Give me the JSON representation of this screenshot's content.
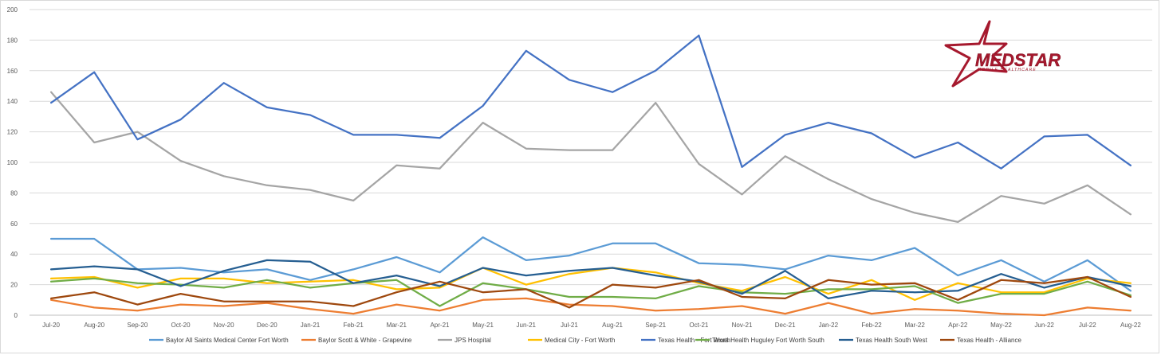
{
  "chart_data": {
    "type": "line",
    "title": "",
    "xlabel": "",
    "ylabel": "",
    "ylim": [
      0,
      200
    ],
    "yticks": [
      0,
      20,
      40,
      60,
      80,
      100,
      120,
      140,
      160,
      180,
      200
    ],
    "grid": "horizontal",
    "legend_position": "bottom",
    "categories": [
      "Jul-20",
      "Aug-20",
      "Sep-20",
      "Oct-20",
      "Nov-20",
      "Dec-20",
      "Jan-21",
      "Feb-21",
      "Mar-21",
      "Apr-21",
      "May-21",
      "Jun-21",
      "Jul-21",
      "Aug-21",
      "Sep-21",
      "Oct-21",
      "Nov-21",
      "Dec-21",
      "Jan-22",
      "Feb-22",
      "Mar-22",
      "Apr-22",
      "May-22",
      "Jun-22",
      "Jul-22",
      "Aug-22"
    ],
    "series": [
      {
        "name": "Baylor All Saints Medical Center Fort Worth",
        "color": "#5b9bd5",
        "values": [
          50,
          50,
          30,
          31,
          28,
          30,
          23,
          30,
          38,
          28,
          51,
          36,
          39,
          47,
          47,
          34,
          33,
          30,
          39,
          36,
          44,
          26,
          36,
          22,
          36,
          16
        ]
      },
      {
        "name": "Baylor Scott & White - Grapevine",
        "color": "#ed7d31",
        "values": [
          10,
          5,
          3,
          7,
          6,
          8,
          4,
          1,
          7,
          3,
          10,
          11,
          7,
          6,
          3,
          4,
          6,
          1,
          8,
          1,
          4,
          3,
          1,
          0,
          5,
          3
        ]
      },
      {
        "name": "JPS Hospital",
        "color": "#a5a5a5",
        "values": [
          146,
          113,
          120,
          101,
          91,
          85,
          82,
          75,
          98,
          96,
          126,
          109,
          108,
          108,
          139,
          99,
          79,
          104,
          89,
          76,
          67,
          61,
          78,
          73,
          85,
          66
        ]
      },
      {
        "name": "Medical City - Fort Worth",
        "color": "#ffc000",
        "values": [
          24,
          25,
          18,
          24,
          24,
          21,
          22,
          23,
          17,
          18,
          31,
          20,
          27,
          31,
          28,
          21,
          16,
          25,
          14,
          23,
          10,
          21,
          15,
          15,
          24,
          21
        ]
      },
      {
        "name": "Texas Health - Fort Worth",
        "color": "#4472c4",
        "values": [
          139,
          159,
          115,
          128,
          152,
          136,
          131,
          118,
          118,
          116,
          137,
          173,
          154,
          146,
          160,
          183,
          97,
          118,
          126,
          119,
          103,
          113,
          96,
          117,
          118,
          98
        ]
      },
      {
        "name": "Texas Health Huguley Fort Worth South",
        "color": "#70ad47",
        "values": [
          22,
          24,
          21,
          20,
          18,
          23,
          18,
          21,
          23,
          6,
          21,
          17,
          12,
          12,
          11,
          19,
          15,
          14,
          17,
          17,
          19,
          8,
          14,
          14,
          22,
          13
        ]
      },
      {
        "name": "Texas Health South West",
        "color": "#255e91",
        "values": [
          30,
          32,
          30,
          19,
          29,
          36,
          35,
          21,
          26,
          19,
          31,
          26,
          29,
          31,
          26,
          22,
          14,
          29,
          11,
          16,
          15,
          16,
          27,
          18,
          25,
          19
        ]
      },
      {
        "name": "Texas Health - Alliance",
        "color": "#9e480e",
        "values": [
          11,
          15,
          7,
          14,
          9,
          9,
          9,
          6,
          15,
          22,
          15,
          17,
          5,
          20,
          18,
          23,
          12,
          11,
          23,
          20,
          21,
          10,
          23,
          21,
          25,
          12
        ]
      }
    ]
  },
  "logo": {
    "brand": "MEDSTAR",
    "tagline": "MOBILE HEALTHCARE",
    "color": "#a6192e"
  }
}
